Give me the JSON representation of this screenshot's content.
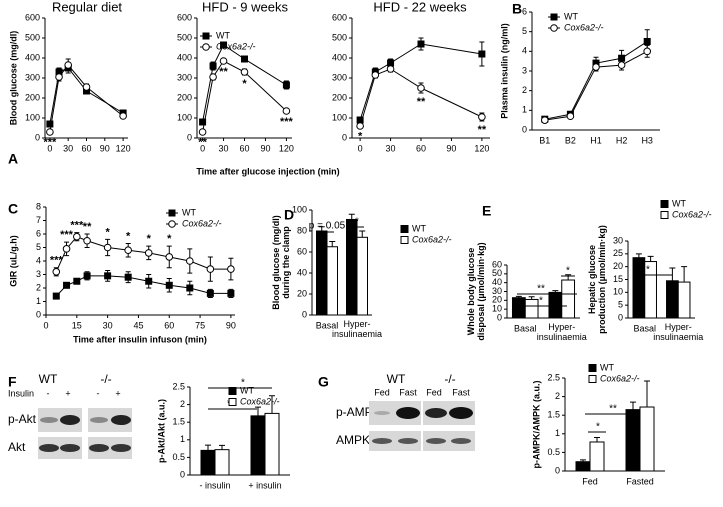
{
  "chart_data": [
    {
      "type": "line",
      "panel": "A",
      "title": "Regular diet",
      "ylabel": "Blood glucose (mg/dl)",
      "x": [
        0,
        15,
        30,
        60,
        120
      ],
      "xlim": [
        -8,
        128
      ],
      "xticks": [
        0,
        30,
        60,
        90,
        120
      ],
      "ylim": [
        0,
        600
      ],
      "yticks": [
        0,
        100,
        200,
        300,
        400,
        500,
        600
      ],
      "series": [
        {
          "name": "WT",
          "color": "#000000",
          "marker": "square",
          "values": [
            70,
            330,
            350,
            235,
            125
          ],
          "errors": [
            10,
            20,
            25,
            15,
            10
          ]
        },
        {
          "name": "Cox6a2-/-",
          "color": "#ffffff",
          "marker": "circle",
          "values": [
            30,
            305,
            365,
            255,
            110
          ],
          "errors": [
            8,
            20,
            30,
            15,
            10
          ]
        }
      ],
      "significance": [
        "***",
        null,
        null,
        null,
        null
      ]
    },
    {
      "type": "line",
      "title": "HFD - 9 weeks",
      "xlabel": "Time after glucose injection (min)",
      "legend": "upper left",
      "x": [
        0,
        15,
        30,
        60,
        120
      ],
      "xlim": [
        -8,
        128
      ],
      "xticks": [
        0,
        30,
        60,
        90,
        120
      ],
      "ylim": [
        0,
        600
      ],
      "yticks": [
        0,
        100,
        200,
        300,
        400,
        500,
        600
      ],
      "series": [
        {
          "name": "WT",
          "color": "#000000",
          "marker": "square",
          "values": [
            80,
            360,
            465,
            395,
            265
          ],
          "errors": [
            10,
            20,
            15,
            15,
            20
          ]
        },
        {
          "name": "Cox6a2-/-",
          "color": "#ffffff",
          "marker": "circle",
          "values": [
            30,
            305,
            385,
            330,
            135
          ],
          "errors": [
            8,
            15,
            10,
            15,
            10
          ]
        }
      ],
      "significance": [
        "**",
        null,
        "**",
        "*",
        "***"
      ]
    },
    {
      "type": "line",
      "title": "HFD - 22 weeks",
      "x": [
        0,
        15,
        30,
        60,
        120
      ],
      "xlim": [
        -8,
        128
      ],
      "xticks": [
        0,
        30,
        60,
        90,
        120
      ],
      "ylim": [
        0,
        600
      ],
      "yticks": [
        0,
        100,
        200,
        300,
        400,
        500,
        600
      ],
      "series": [
        {
          "name": "WT",
          "color": "#000000",
          "marker": "square",
          "values": [
            90,
            330,
            375,
            470,
            420
          ],
          "errors": [
            15,
            20,
            20,
            30,
            60
          ]
        },
        {
          "name": "Cox6a2-/-",
          "color": "#ffffff",
          "marker": "circle",
          "values": [
            60,
            315,
            345,
            250,
            105
          ],
          "errors": [
            8,
            15,
            15,
            25,
            20
          ]
        }
      ],
      "significance": [
        "*",
        null,
        null,
        "**",
        "**"
      ]
    },
    {
      "type": "line",
      "panel": "B",
      "ylabel": "Plasma insulin (ng/ml)",
      "legend": "upper left",
      "categories": [
        "B1",
        "B2",
        "H1",
        "H2",
        "H3"
      ],
      "ylim": [
        0,
        6
      ],
      "yticks": [
        0,
        1,
        2,
        3,
        4,
        5,
        6
      ],
      "series": [
        {
          "name": "WT",
          "color": "#000000",
          "marker": "square",
          "values": [
            0.55,
            0.8,
            3.4,
            3.65,
            4.5
          ],
          "errors": [
            0.05,
            0.1,
            0.3,
            0.4,
            0.6
          ]
        },
        {
          "name": "Cox6a2-/-",
          "color": "#ffffff",
          "marker": "circle",
          "values": [
            0.5,
            0.7,
            3.2,
            3.3,
            4.0
          ],
          "errors": [
            0.05,
            0.1,
            0.2,
            0.25,
            0.3
          ]
        }
      ]
    },
    {
      "type": "line",
      "panel": "C",
      "ylabel": "GIR (uL/g.h)",
      "xlabel": "Time after insulin infuson (min)",
      "legend": "upper right",
      "x": [
        5,
        10,
        15,
        20,
        30,
        40,
        50,
        60,
        70,
        80,
        90
      ],
      "xlim": [
        0,
        92
      ],
      "xticks": [
        0,
        15,
        30,
        45,
        60,
        75,
        90
      ],
      "ylim": [
        0,
        8
      ],
      "yticks": [
        0,
        1,
        2,
        3,
        4,
        5,
        6,
        7,
        8
      ],
      "series": [
        {
          "name": "WT",
          "color": "#000000",
          "marker": "square",
          "values": [
            1.4,
            2.2,
            2.5,
            2.9,
            2.9,
            2.8,
            2.5,
            2.2,
            2.0,
            1.6,
            1.6
          ],
          "errors": [
            0.1,
            0.2,
            0.2,
            0.3,
            0.4,
            0.4,
            0.5,
            0.5,
            0.5,
            0.3,
            0.3
          ]
        },
        {
          "name": "Cox6a2-/-",
          "color": "#ffffff",
          "marker": "circle",
          "values": [
            3.2,
            4.9,
            5.8,
            5.5,
            5.0,
            4.8,
            4.6,
            4.3,
            4.0,
            3.4,
            3.4
          ],
          "errors": [
            0.3,
            0.5,
            0.3,
            0.5,
            0.6,
            0.5,
            0.5,
            0.8,
            0.9,
            0.9,
            0.8
          ]
        }
      ],
      "significance": [
        "***",
        "***",
        "***",
        "**",
        "*",
        "*",
        "*",
        "*",
        null,
        null,
        null
      ],
      "significance_side": "above"
    },
    {
      "type": "bar",
      "panel": "D",
      "ylabel": "Blood glucose (mg/dl)\nduring the clamp",
      "legend": "upper right",
      "categories": [
        "Basal",
        "Hyper-\ninsulinaemia"
      ],
      "ylim": [
        0,
        100
      ],
      "yticks": [
        0,
        20,
        40,
        60,
        80,
        100
      ],
      "series": [
        {
          "name": "WT",
          "color": "#000000",
          "values": [
            80,
            91
          ],
          "errors": [
            4,
            5
          ]
        },
        {
          "name": "Cox6a2-/-",
          "color": "#ffffff",
          "values": [
            65,
            74
          ],
          "errors": [
            5,
            6
          ]
        }
      ],
      "annotations": [
        "p = 0.05",
        "*"
      ]
    },
    {
      "type": "bar",
      "panel": "E",
      "ylabel": "Whole body glucose\ndisposal (µmol/min·kg)",
      "categories": [
        "Basal",
        "Hyper-\ninsulinaemia"
      ],
      "ylim": [
        0,
        60
      ],
      "yticks": [
        0,
        10,
        20,
        30,
        40,
        50,
        60
      ],
      "series": [
        {
          "name": "WT",
          "color": "#000000",
          "values": [
            23,
            29
          ],
          "errors": [
            1.5,
            2
          ]
        },
        {
          "name": "Cox6a2-/-",
          "color": "#ffffff",
          "values": [
            21,
            43
          ],
          "errors": [
            3,
            6
          ]
        }
      ],
      "annotations": [
        "*",
        "**",
        "*"
      ]
    },
    {
      "type": "bar",
      "ylabel": "Hepatic glucose\nproduction (µmol/min·kg)",
      "legend": "upper right",
      "categories": [
        "Basal",
        "Hyper-\ninsulinaemia"
      ],
      "ylim": [
        0,
        30
      ],
      "yticks": [
        0,
        5,
        10,
        15,
        20,
        25,
        30
      ],
      "series": [
        {
          "name": "WT",
          "color": "#000000",
          "values": [
            23.5,
            14.5
          ],
          "errors": [
            1.5,
            5
          ]
        },
        {
          "name": "Cox6a2-/-",
          "color": "#ffffff",
          "values": [
            22,
            14
          ],
          "errors": [
            2,
            6
          ]
        }
      ],
      "annotations": [
        "*"
      ]
    },
    {
      "type": "bar",
      "panel": "F",
      "ylabel": "p-Akt/Akt (a.u.)",
      "legend": "upper left",
      "categories": [
        "- insulin",
        "+ insulin"
      ],
      "ylim": [
        0,
        2.5
      ],
      "yticks": [
        0,
        0.5,
        1,
        1.5,
        2,
        2.5
      ],
      "series": [
        {
          "name": "WT",
          "color": "#000000",
          "values": [
            0.7,
            1.68
          ],
          "errors": [
            0.15,
            0.25
          ]
        },
        {
          "name": "Cox6a2-/-",
          "color": "#ffffff",
          "values": [
            0.72,
            1.75
          ],
          "errors": [
            0.12,
            0.5
          ]
        }
      ],
      "annotations": [
        "*",
        "*"
      ]
    },
    {
      "type": "bar",
      "panel": "G",
      "ylabel": "p-AMPK/AMPK (a.u.)",
      "legend": "upper left",
      "categories": [
        "Fed",
        "Fasted"
      ],
      "ylim": [
        0,
        2.5
      ],
      "yticks": [
        0,
        0.5,
        1,
        1.5,
        2,
        2.5
      ],
      "series": [
        {
          "name": "WT",
          "color": "#000000",
          "values": [
            0.25,
            1.65
          ],
          "errors": [
            0.05,
            0.2
          ]
        },
        {
          "name": "Cox6a2-/-",
          "color": "#ffffff",
          "values": [
            0.78,
            1.72
          ],
          "errors": [
            0.12,
            0.7
          ]
        }
      ],
      "annotations": [
        "*",
        "**"
      ]
    }
  ],
  "blot_f": {
    "genotypes": [
      "WT",
      "-/-"
    ],
    "condition": "Insulin",
    "lanes": [
      "-",
      "+",
      "-",
      "+"
    ],
    "rows": [
      "p-Akt",
      "Akt"
    ]
  },
  "blot_g": {
    "genotypes": [
      "WT",
      "-/-"
    ],
    "lanes": [
      "Fed",
      "Fast",
      "Fed",
      "Fast"
    ],
    "rows": [
      "p-AMPK",
      "AMPK"
    ]
  }
}
